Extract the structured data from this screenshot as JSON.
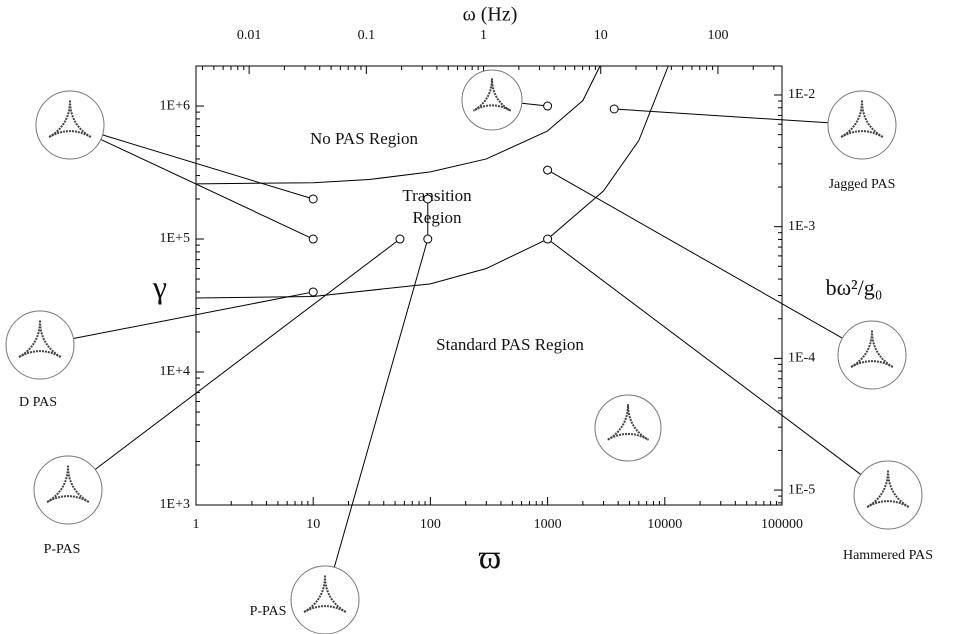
{
  "chart_data": {
    "type": "scatter",
    "x_label": "ϖ",
    "y_label": "γ",
    "top_axis_label": "ω (Hz)",
    "right_axis_label": "bω²/g₀",
    "xscale": "log",
    "yscale": "log",
    "xlim": [
      1,
      100000
    ],
    "ylim": [
      1000,
      2000000
    ],
    "xticks": [
      1,
      10,
      100,
      1000,
      10000,
      100000
    ],
    "yticks": [
      {
        "value": 1000,
        "label": "1E+3"
      },
      {
        "value": 10000,
        "label": "1E+4"
      },
      {
        "value": 100000,
        "label": "1E+5"
      },
      {
        "value": 1000000,
        "label": "1E+6"
      }
    ],
    "x2lim": [
      0.00352,
      352
    ],
    "x2ticks": [
      0.01,
      0.1,
      1,
      10,
      100
    ],
    "y2lim": [
      7.7e-06,
      0.0166
    ],
    "y2ticks": [
      {
        "value": 1e-05,
        "label": "1E-5"
      },
      {
        "value": 0.0001,
        "label": "1E-4"
      },
      {
        "value": 0.001,
        "label": "1E-3"
      },
      {
        "value": 0.01,
        "label": "1E-2"
      }
    ],
    "points": {
      "x": [
        10,
        10,
        10,
        55,
        95,
        95,
        1000,
        1000,
        1000,
        3700
      ],
      "values": [
        200000,
        100000,
        40000,
        100000,
        100000,
        200000,
        100000,
        330000,
        1000000,
        950000
      ],
      "color": "#000000"
    },
    "curves": [
      {
        "x": [
          1,
          10,
          30,
          100,
          300,
          1000,
          2000,
          2800
        ],
        "values": [
          260000,
          265000,
          280000,
          320000,
          400000,
          650000,
          1100000,
          2000000
        ],
        "color": "#000000"
      },
      {
        "x": [
          1,
          10,
          100,
          300,
          1000,
          3000,
          6000,
          10700
        ],
        "values": [
          36000,
          37000,
          46000,
          60000,
          100000,
          230000,
          550000,
          2000000
        ],
        "color": "#000000"
      }
    ],
    "region_labels": [
      "No PAS Region",
      "Transition",
      "Region",
      "Standard PAS Region"
    ],
    "inset_labels": [
      "Jagged PAS",
      "D PAS",
      "P-PAS",
      "Hammered PAS",
      "P-PAS"
    ]
  }
}
